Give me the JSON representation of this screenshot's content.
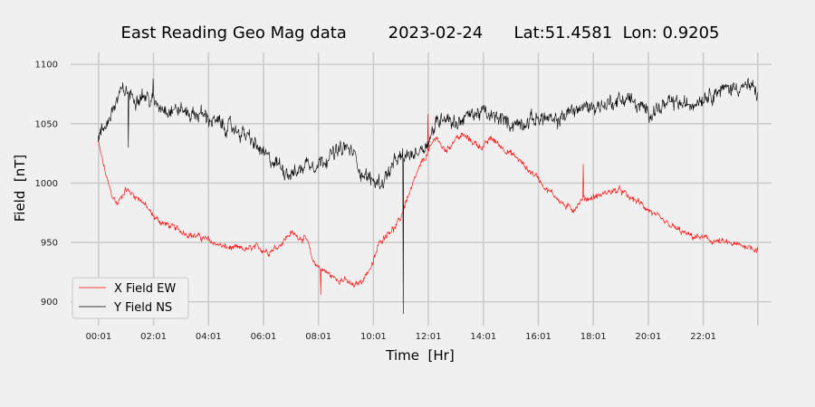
{
  "chart_data": {
    "type": "line",
    "title": "East Reading Geo Mag data        2023-02-24      Lat:51.4581  Lon: 0.9205",
    "xlabel": "Time  [Hr]",
    "ylabel": "Field  [nT]",
    "x_unit": "hour",
    "xlim": [
      -1.0,
      24.5
    ],
    "ylim": [
      880,
      1110
    ],
    "x_ticks": [
      0.0167,
      2.0167,
      4.0167,
      6.0167,
      8.0167,
      10.0167,
      12.0167,
      14.0167,
      16.0167,
      18.0167,
      20.0167,
      22.0167,
      24.0
    ],
    "x_tick_labels": [
      "00:01",
      "02:01",
      "04:01",
      "06:01",
      "08:01",
      "10:01",
      "12:01",
      "14:01",
      "16:01",
      "18:01",
      "20:01",
      "22:01",
      ""
    ],
    "y_ticks": [
      900,
      950,
      1000,
      1050,
      1100
    ],
    "y_tick_labels": [
      "900",
      "950",
      "1000",
      "1050",
      "1100"
    ],
    "grid": true,
    "legend_position": "lower-left",
    "colors": {
      "background": "#f0f0f0",
      "grid": "#cbcbcb",
      "x_field": "#ff0000",
      "y_field": "#000000"
    },
    "series": [
      {
        "name": "X Field EW",
        "color": "#ff0000",
        "noise": 3,
        "points": [
          [
            0.0,
            1035
          ],
          [
            0.15,
            1020
          ],
          [
            0.3,
            1005
          ],
          [
            0.5,
            990
          ],
          [
            0.7,
            982
          ],
          [
            1.0,
            995
          ],
          [
            1.3,
            990
          ],
          [
            1.6,
            985
          ],
          [
            2.0,
            972
          ],
          [
            2.3,
            967
          ],
          [
            2.6,
            964
          ],
          [
            3.0,
            960
          ],
          [
            3.4,
            956
          ],
          [
            3.8,
            954
          ],
          [
            4.2,
            950
          ],
          [
            4.6,
            946
          ],
          [
            5.0,
            945
          ],
          [
            5.4,
            944
          ],
          [
            5.8,
            946
          ],
          [
            6.2,
            942
          ],
          [
            6.6,
            948
          ],
          [
            7.0,
            958
          ],
          [
            7.3,
            955
          ],
          [
            7.6,
            952
          ],
          [
            7.8,
            935
          ],
          [
            8.0,
            930
          ],
          [
            8.3,
            925
          ],
          [
            8.6,
            920
          ],
          [
            9.0,
            918
          ],
          [
            9.3,
            913
          ],
          [
            9.6,
            918
          ],
          [
            10.0,
            932
          ],
          [
            10.2,
            948
          ],
          [
            10.4,
            955
          ],
          [
            10.6,
            960
          ],
          [
            10.8,
            962
          ],
          [
            11.0,
            970
          ],
          [
            11.2,
            985
          ],
          [
            11.4,
            995
          ],
          [
            11.6,
            1008
          ],
          [
            11.8,
            1018
          ],
          [
            12.0,
            1025
          ],
          [
            12.3,
            1040
          ],
          [
            12.5,
            1030
          ],
          [
            12.7,
            1028
          ],
          [
            13.0,
            1038
          ],
          [
            13.3,
            1040
          ],
          [
            13.6,
            1035
          ],
          [
            14.0,
            1030
          ],
          [
            14.3,
            1038
          ],
          [
            14.6,
            1032
          ],
          [
            15.0,
            1025
          ],
          [
            15.3,
            1020
          ],
          [
            15.6,
            1012
          ],
          [
            16.0,
            1005
          ],
          [
            16.3,
            995
          ],
          [
            16.7,
            988
          ],
          [
            17.0,
            980
          ],
          [
            17.3,
            978
          ],
          [
            17.6,
            986
          ],
          [
            18.0,
            988
          ],
          [
            18.3,
            990
          ],
          [
            18.6,
            993
          ],
          [
            19.0,
            994
          ],
          [
            19.3,
            988
          ],
          [
            19.6,
            985
          ],
          [
            20.0,
            978
          ],
          [
            20.3,
            972
          ],
          [
            20.6,
            967
          ],
          [
            21.0,
            962
          ],
          [
            21.3,
            958
          ],
          [
            21.6,
            955
          ],
          [
            22.0,
            954
          ],
          [
            22.4,
            951
          ],
          [
            22.8,
            950
          ],
          [
            23.2,
            948
          ],
          [
            23.6,
            947
          ],
          [
            24.0,
            944
          ]
        ]
      },
      {
        "name": "Y Field NS",
        "color": "#000000",
        "noise": 7,
        "points": [
          [
            0.0,
            1038
          ],
          [
            0.2,
            1045
          ],
          [
            0.4,
            1055
          ],
          [
            0.6,
            1065
          ],
          [
            0.8,
            1075
          ],
          [
            1.0,
            1078
          ],
          [
            1.3,
            1072
          ],
          [
            1.6,
            1075
          ],
          [
            2.0,
            1068
          ],
          [
            2.3,
            1065
          ],
          [
            2.6,
            1062
          ],
          [
            3.0,
            1062
          ],
          [
            3.4,
            1058
          ],
          [
            3.8,
            1058
          ],
          [
            4.2,
            1052
          ],
          [
            4.6,
            1048
          ],
          [
            5.0,
            1045
          ],
          [
            5.4,
            1040
          ],
          [
            5.8,
            1030
          ],
          [
            6.2,
            1020
          ],
          [
            6.6,
            1015
          ],
          [
            7.0,
            1008
          ],
          [
            7.3,
            1010
          ],
          [
            7.6,
            1018
          ],
          [
            8.0,
            1016
          ],
          [
            8.3,
            1022
          ],
          [
            8.6,
            1025
          ],
          [
            9.0,
            1030
          ],
          [
            9.3,
            1025
          ],
          [
            9.6,
            1008
          ],
          [
            10.0,
            1002
          ],
          [
            10.3,
            1000
          ],
          [
            10.6,
            1010
          ],
          [
            10.9,
            1020
          ],
          [
            11.2,
            1022
          ],
          [
            11.5,
            1025
          ],
          [
            11.8,
            1030
          ],
          [
            12.0,
            1035
          ],
          [
            12.3,
            1050
          ],
          [
            12.6,
            1058
          ],
          [
            13.0,
            1050
          ],
          [
            13.3,
            1055
          ],
          [
            13.6,
            1058
          ],
          [
            14.0,
            1060
          ],
          [
            14.3,
            1055
          ],
          [
            14.6,
            1055
          ],
          [
            15.0,
            1050
          ],
          [
            15.3,
            1050
          ],
          [
            15.6,
            1052
          ],
          [
            16.0,
            1055
          ],
          [
            16.3,
            1055
          ],
          [
            16.6,
            1050
          ],
          [
            17.0,
            1058
          ],
          [
            17.3,
            1062
          ],
          [
            17.6,
            1063
          ],
          [
            18.0,
            1065
          ],
          [
            18.3,
            1065
          ],
          [
            18.6,
            1068
          ],
          [
            19.0,
            1070
          ],
          [
            19.3,
            1072
          ],
          [
            19.6,
            1065
          ],
          [
            20.0,
            1060
          ],
          [
            20.3,
            1062
          ],
          [
            20.6,
            1065
          ],
          [
            21.0,
            1068
          ],
          [
            21.4,
            1065
          ],
          [
            21.8,
            1070
          ],
          [
            22.2,
            1075
          ],
          [
            22.6,
            1078
          ],
          [
            23.0,
            1080
          ],
          [
            23.4,
            1082
          ],
          [
            23.8,
            1080
          ],
          [
            24.0,
            1075
          ]
        ]
      }
    ],
    "spikes": [
      {
        "series": "Y Field NS",
        "x": 1.1,
        "y": 1030
      },
      {
        "series": "Y Field NS",
        "x": 2.0,
        "y": 1088
      },
      {
        "series": "Y Field NS",
        "x": 11.1,
        "y": 890
      },
      {
        "series": "X Field EW",
        "x": 8.1,
        "y": 906
      },
      {
        "series": "X Field EW",
        "x": 17.65,
        "y": 1016
      },
      {
        "series": "X Field EW",
        "x": 12.0,
        "y": 1058
      }
    ]
  }
}
